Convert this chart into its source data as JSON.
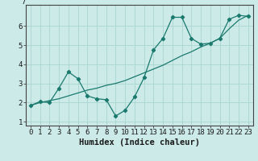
{
  "x": [
    0,
    1,
    2,
    3,
    4,
    5,
    6,
    7,
    8,
    9,
    10,
    11,
    12,
    13,
    14,
    15,
    16,
    17,
    18,
    19,
    20,
    21,
    22,
    23
  ],
  "y_jagged": [
    1.85,
    2.05,
    2.0,
    2.75,
    3.6,
    3.25,
    2.35,
    2.2,
    2.15,
    1.3,
    1.6,
    2.3,
    3.3,
    4.75,
    5.35,
    6.45,
    6.45,
    5.35,
    5.05,
    5.1,
    5.35,
    6.35,
    6.55,
    6.5
  ],
  "y_trend": [
    1.85,
    2.0,
    2.1,
    2.2,
    2.35,
    2.5,
    2.65,
    2.75,
    2.9,
    3.0,
    3.15,
    3.35,
    3.55,
    3.75,
    3.95,
    4.2,
    4.45,
    4.65,
    4.9,
    5.1,
    5.35,
    5.85,
    6.3,
    6.55
  ],
  "line_color": "#1a7a6e",
  "bg_color": "#cceae8",
  "grid_color": "#aad4d0",
  "xlabel": "Humidex (Indice chaleur)",
  "ylim": [
    0.8,
    7.1
  ],
  "xlim": [
    -0.5,
    23.5
  ],
  "xlabel_fontsize": 7.5,
  "tick_fontsize": 6.5,
  "yticks": [
    1,
    2,
    3,
    4,
    5,
    6
  ],
  "xticks": [
    0,
    1,
    2,
    3,
    4,
    5,
    6,
    7,
    8,
    9,
    10,
    11,
    12,
    13,
    14,
    15,
    16,
    17,
    18,
    19,
    20,
    21,
    22,
    23
  ]
}
